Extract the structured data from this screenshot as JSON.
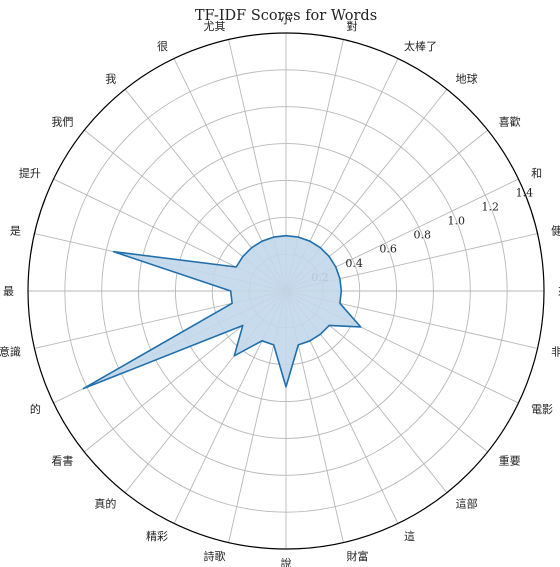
{
  "chart_data": {
    "type": "radar",
    "title": "TF-IDF Scores for Words",
    "categories": [
      "小",
      "對",
      "太棒了",
      "地球",
      "喜歡",
      "和",
      "健康",
      "來",
      "非常",
      "電影",
      "重要",
      "這部",
      "這",
      "財富",
      "說",
      "詩歌",
      "精彩",
      "真的",
      "看書",
      "的",
      "環保意識",
      "最",
      "是",
      "提升",
      "我們",
      "我",
      "很",
      "尤其"
    ],
    "series": [
      {
        "values": [
          0.3,
          0.3,
          0.3,
          0.3,
          0.3,
          0.3,
          0.3,
          0.3,
          0.3,
          0.45,
          0.3,
          0.3,
          0.3,
          0.3,
          0.52,
          0.3,
          0.3,
          0.45,
          0.3,
          1.22,
          0.3,
          0.3,
          0.96,
          0.3,
          0.3,
          0.3,
          0.3,
          0.3
        ],
        "color": "#1f6fad"
      }
    ],
    "rlim": [
      0,
      1.4
    ],
    "rticks": [
      "0.2",
      "0.4",
      "0.6",
      "0.8",
      "1.0",
      "1.2",
      "1.4"
    ],
    "grid": true,
    "fill_color": "#c2d7ea"
  }
}
